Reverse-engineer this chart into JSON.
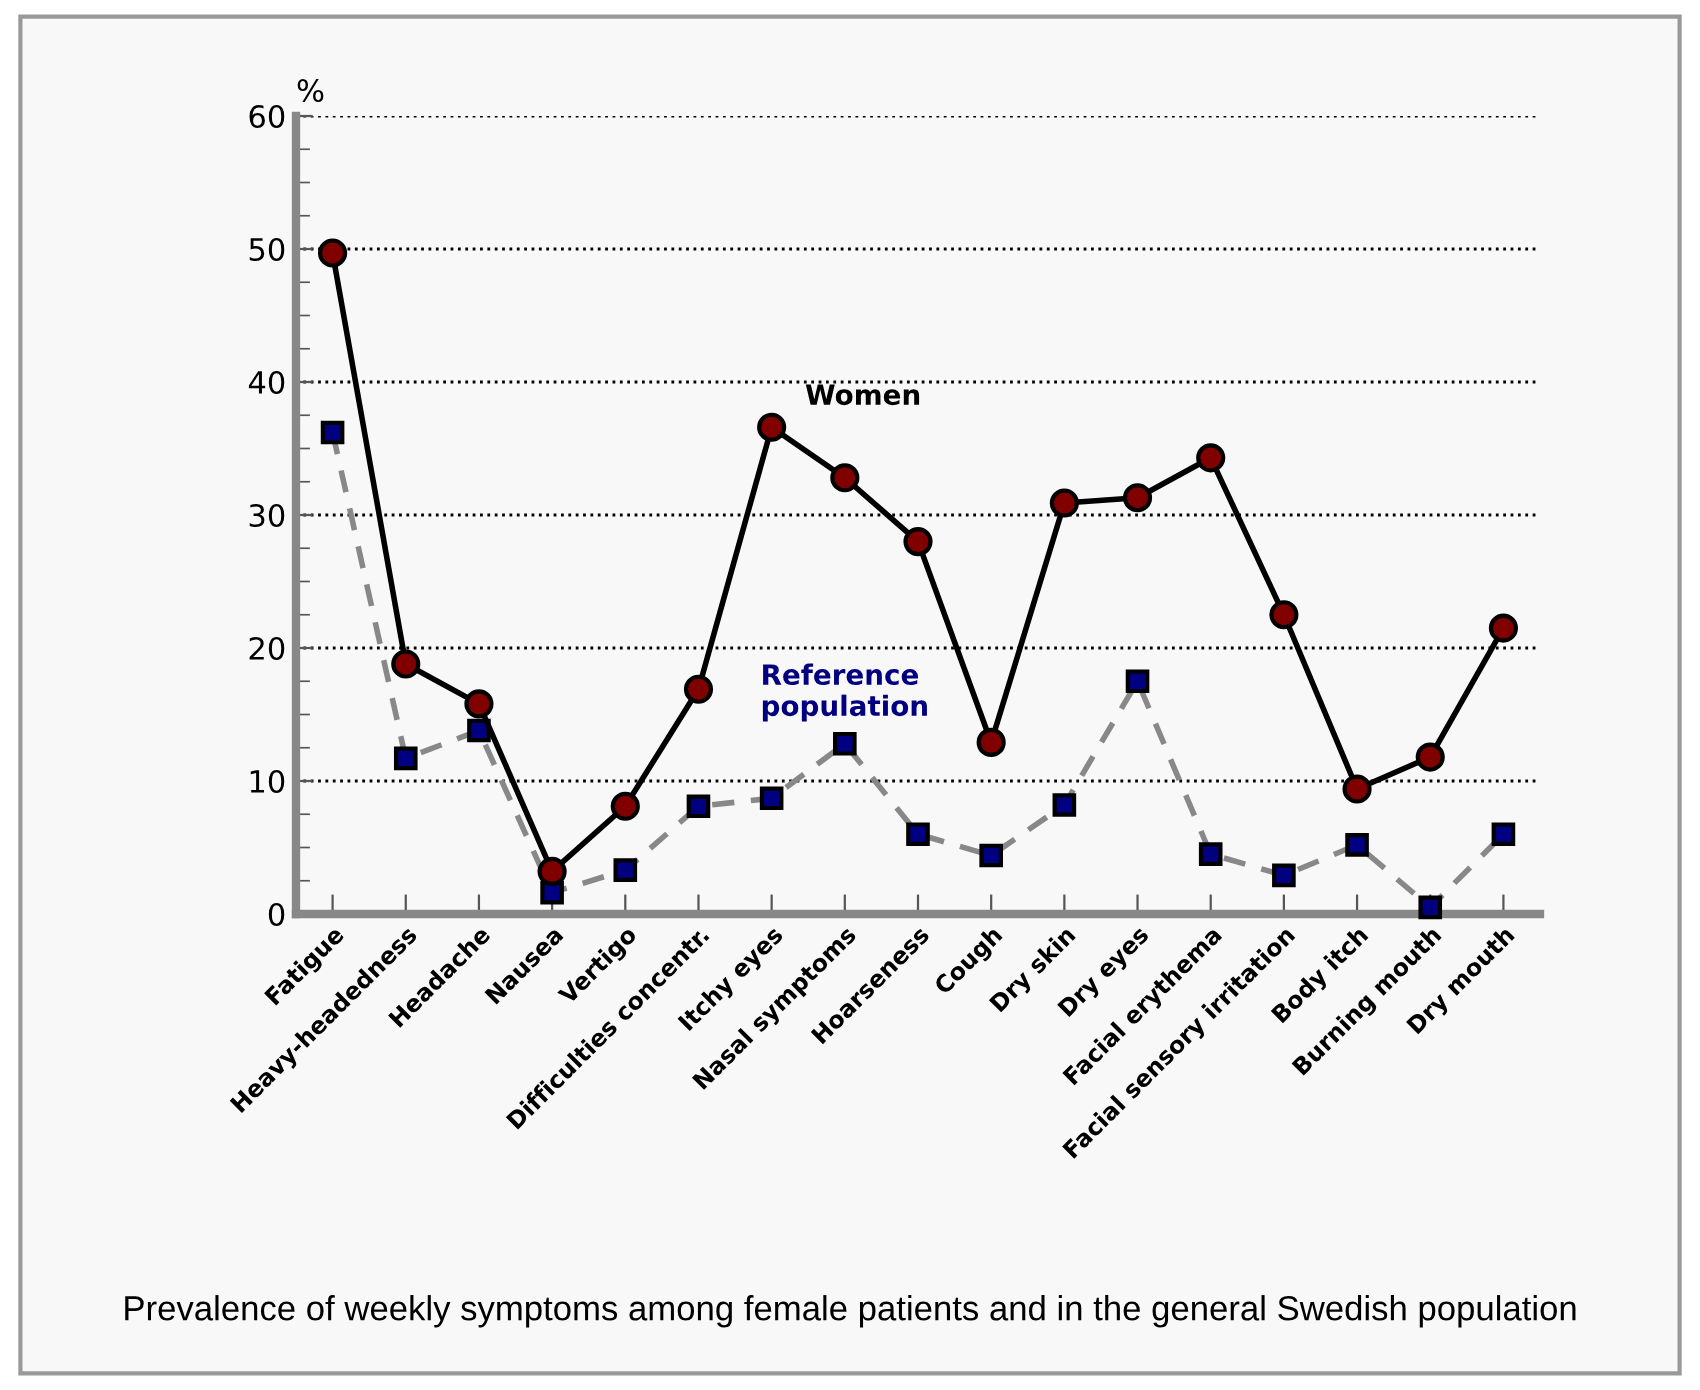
{
  "chart_data": {
    "type": "line",
    "categories": [
      "Fatigue",
      "Heavy-headedness",
      "Headache",
      "Nausea",
      "Vertigo",
      "Difficulties concentr.",
      "Itchy eyes",
      "Nasal symptoms",
      "Hoarseness",
      "Cough",
      "Dry skin",
      "Dry eyes",
      "Facial erythema",
      "Facial sensory irritation",
      "Body itch",
      "Burning mouth",
      "Dry mouth"
    ],
    "series": [
      {
        "name": "Women",
        "color": "#800000",
        "marker": "circle",
        "line_style": "solid",
        "values": [
          49.7,
          18.8,
          15.8,
          3.2,
          8.1,
          16.9,
          36.6,
          32.8,
          28.0,
          12.9,
          30.9,
          31.3,
          34.3,
          22.5,
          9.4,
          11.8,
          21.5
        ]
      },
      {
        "name": "Reference population",
        "color": "#000080",
        "marker": "square",
        "line_style": "dashed",
        "values": [
          36.2,
          11.7,
          13.8,
          1.6,
          3.3,
          8.1,
          8.7,
          12.8,
          6.0,
          4.4,
          8.2,
          17.5,
          4.5,
          2.9,
          5.2,
          0.5,
          6.0
        ]
      }
    ],
    "ylabel": "%",
    "ylim": [
      0,
      60
    ],
    "yticks": [
      0,
      10,
      20,
      30,
      40,
      50,
      60
    ],
    "grid": "y",
    "legend": false,
    "annotations": [
      "Prevalence of weekly symptoms among female patients and in the general Swedish population"
    ]
  }
}
